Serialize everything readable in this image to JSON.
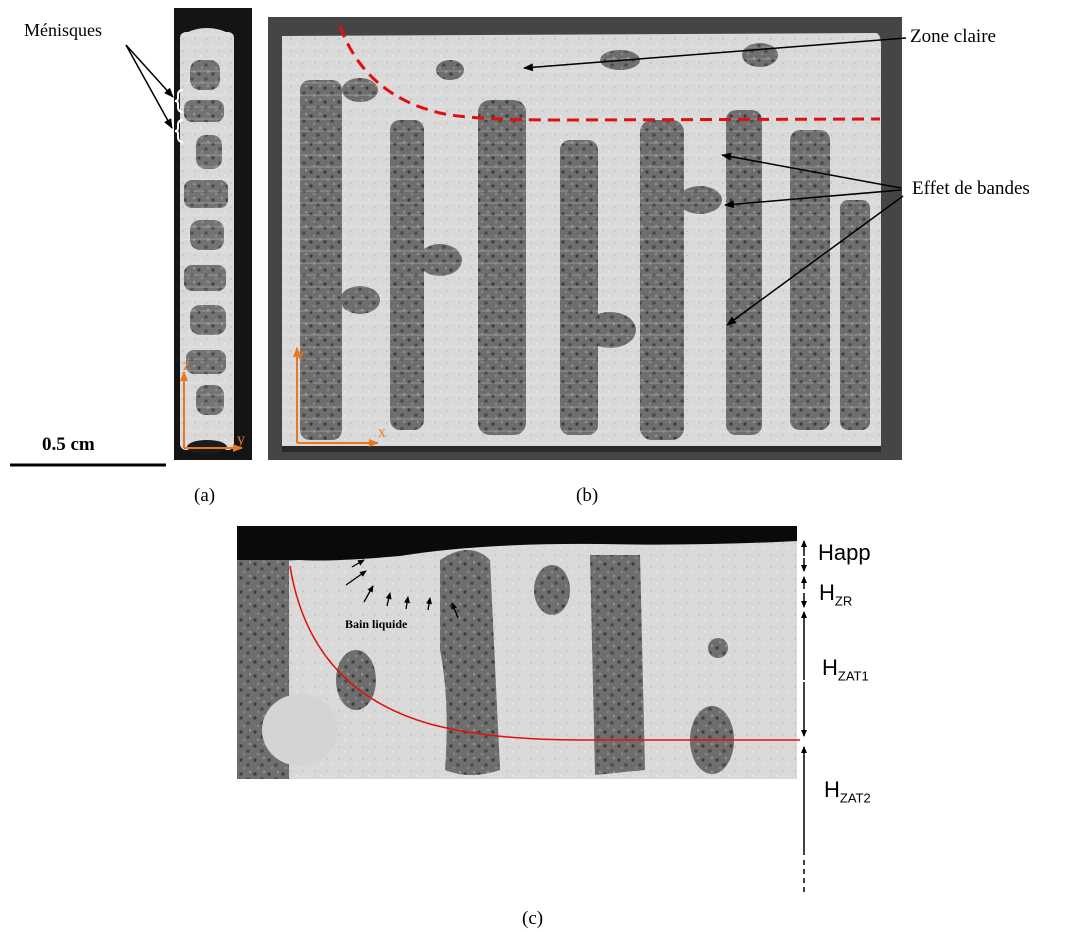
{
  "figure": {
    "panel_a": {
      "label": "(a)",
      "annotation": "Ménisques",
      "scale_bar": "0.5 cm",
      "axis_z": "z",
      "axis_y": "y"
    },
    "panel_b": {
      "label": "(b)",
      "annotation_zone": "Zone claire",
      "annotation_bands": "Effet de bandes",
      "axis_z": "z",
      "axis_x": "x"
    },
    "panel_c": {
      "label": "(c)",
      "annotation_bath": "Bain liquide",
      "heights": {
        "happ": "Happ",
        "hzr_main": "H",
        "hzr_sub": "ZR",
        "hzat1_main": "H",
        "hzat1_sub": "ZAT1",
        "hzat2_main": "H",
        "hzat2_sub": "ZAT2"
      }
    },
    "colors": {
      "axis_orange": "#e87722",
      "boundary_red": "#e01010",
      "sample_dark": "#141414",
      "background_gray": "#454545"
    }
  }
}
